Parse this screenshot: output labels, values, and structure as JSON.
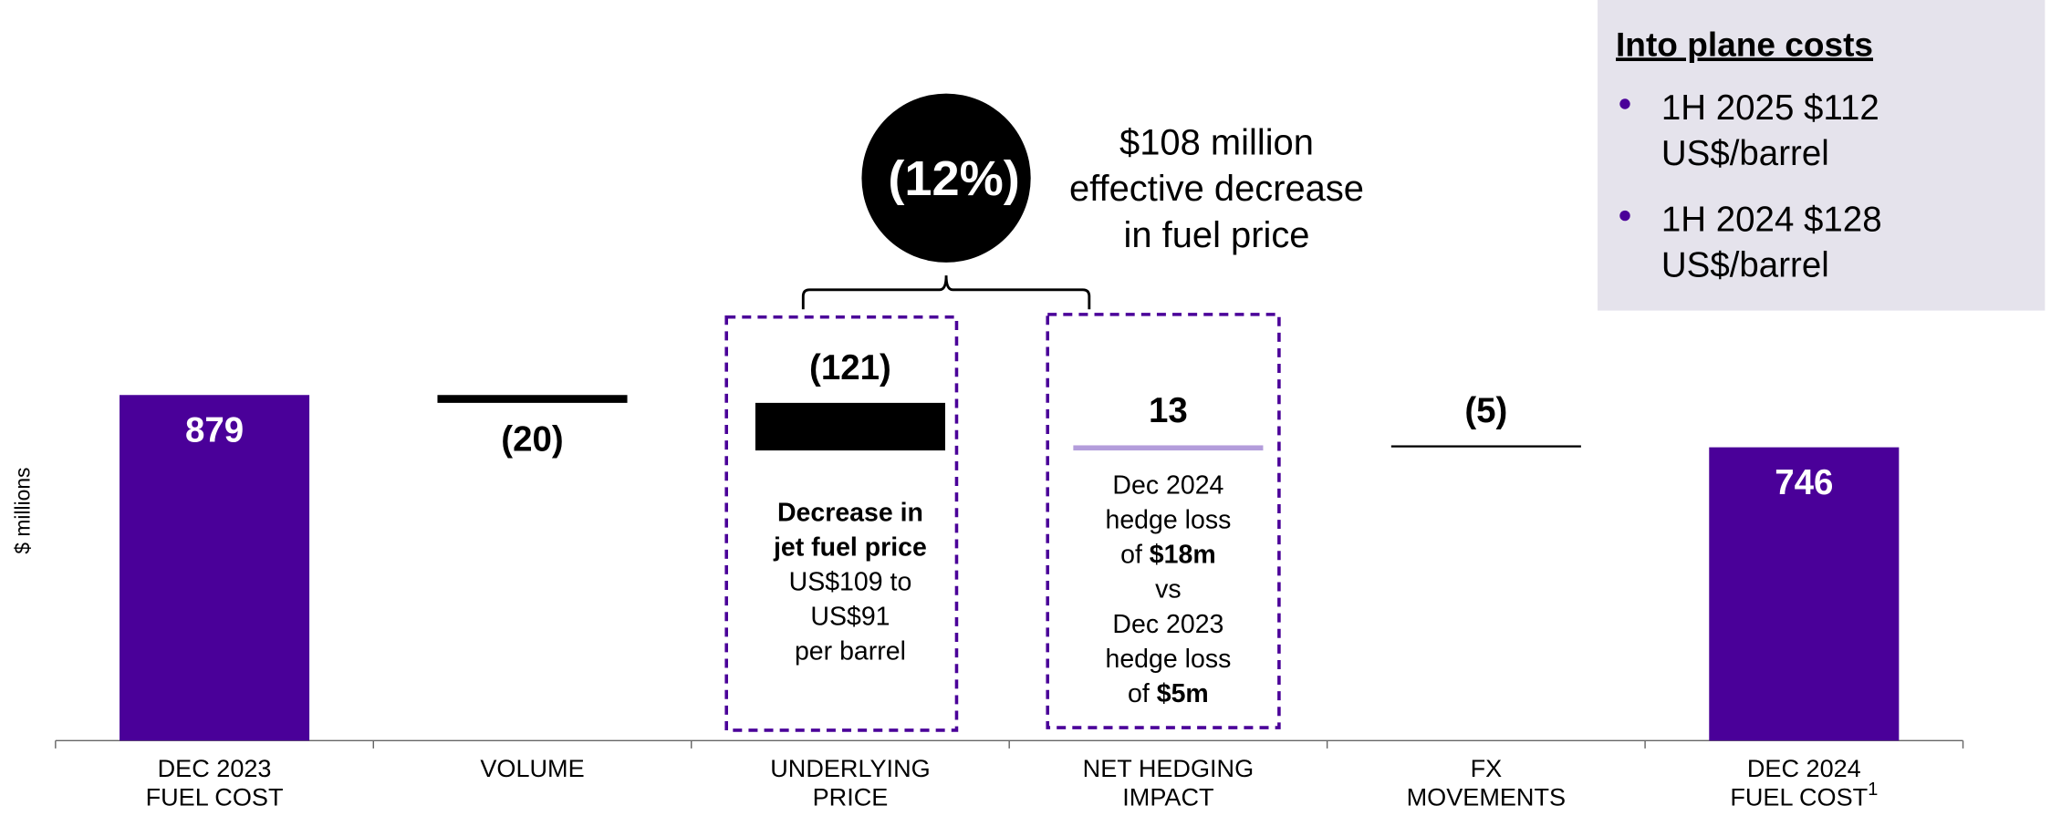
{
  "chart_data": {
    "type": "waterfall",
    "y_axis_label": "$ millions",
    "categories": [
      [
        "DEC 2023",
        "FUEL COST"
      ],
      [
        "VOLUME"
      ],
      [
        "UNDERLYING",
        "PRICE"
      ],
      [
        "NET HEDGING",
        "IMPACT"
      ],
      [
        "FX",
        "MOVEMENTS"
      ],
      [
        "DEC 2024",
        "FUEL COST"
      ]
    ],
    "category_footnote": "1",
    "values": [
      879,
      -20,
      -121,
      13,
      -5,
      746
    ],
    "value_labels": [
      "879",
      "(20)",
      "(121)",
      "13",
      "(5)",
      "746"
    ],
    "totals": [
      true,
      false,
      false,
      false,
      false,
      true
    ],
    "colors": [
      "#4a0099",
      "#000000",
      "#000000",
      "#b39ddb",
      "#000000",
      "#4a0099"
    ],
    "notes": [
      {
        "category": 2,
        "lines": [
          [
            {
              "text": "Decrease in",
              "bold": true
            }
          ],
          [
            {
              "text": "jet fuel price",
              "bold": true
            }
          ],
          [
            {
              "text": "US$109 to"
            }
          ],
          [
            {
              "text": "US$91"
            }
          ],
          [
            {
              "text": "per barrel"
            }
          ]
        ]
      },
      {
        "category": 3,
        "lines": [
          [
            {
              "text": "Dec 2024"
            }
          ],
          [
            {
              "text": "hedge loss"
            }
          ],
          [
            {
              "text": "of "
            },
            {
              "text": "$18m",
              "bold": true
            }
          ],
          [
            {
              "text": "vs"
            }
          ],
          [
            {
              "text": "Dec 2023"
            }
          ],
          [
            {
              "text": "hedge loss"
            }
          ],
          [
            {
              "text": "of "
            },
            {
              "text": "$5m",
              "bold": true
            }
          ]
        ]
      }
    ],
    "callout": {
      "badge": "(12%)",
      "lines": [
        "$108 million",
        "effective decrease",
        "in fuel price"
      ]
    },
    "panel": {
      "title": "Into plane costs",
      "bullets": [
        [
          "1H 2025 $112",
          "US$/barrel"
        ],
        [
          "1H 2024 $128",
          "US$/barrel"
        ]
      ]
    }
  }
}
